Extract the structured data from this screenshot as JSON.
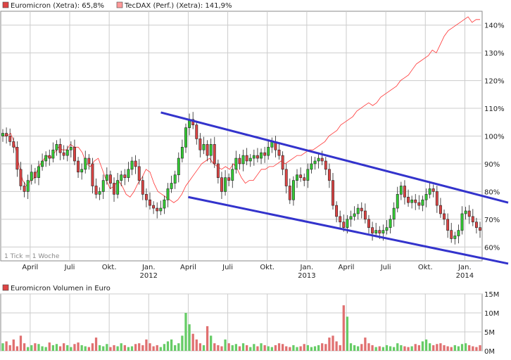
{
  "chart_data": {
    "type": "candlestick",
    "legend": {
      "series1_label": "Euromicron (Xetra): 65,8%",
      "series2_label": "TecDAX (Perf.) (Xetra): 141,9%",
      "volume_label": "Euromicron Volumen in Euro",
      "placement": "top-left"
    },
    "note": "1 Tick = 1 Woche",
    "colors": {
      "up": "#33cc33",
      "down": "#dd4444",
      "tecdax": "#ff3333",
      "channel": "#3333cc",
      "grid": "#cccccc",
      "volume": "#e07070"
    },
    "y_axis": {
      "min": 55,
      "max": 145,
      "ticks": [
        "60%",
        "70%",
        "80%",
        "90%",
        "100%",
        "110%",
        "120%",
        "130%",
        "140%"
      ],
      "tick_values": [
        60,
        70,
        80,
        90,
        100,
        110,
        120,
        130,
        140
      ]
    },
    "x_axis": {
      "labels": [
        "April",
        "Juli",
        "Okt.",
        "Jan.",
        "April",
        "Juli",
        "Okt.",
        "Jan.",
        "April",
        "Juli",
        "Okt.",
        "Jan."
      ],
      "label_weeks": [
        9,
        22,
        35,
        48,
        61,
        74,
        87,
        100,
        113,
        126,
        139,
        152
      ],
      "year_labels": [
        "2012",
        "2013",
        "2014"
      ],
      "year_weeks": [
        48,
        100,
        152
      ],
      "week_count": 158
    },
    "volume_axis": {
      "min": 0,
      "max": 15,
      "ticks": [
        "0M",
        "5M",
        "10M",
        "15M"
      ],
      "tick_values": [
        0,
        5,
        10,
        15
      ]
    },
    "euromicron_close": [
      101,
      100,
      98,
      96,
      88,
      82,
      80,
      84,
      87,
      85,
      89,
      91,
      93,
      92,
      95,
      97,
      94,
      93,
      95,
      96,
      91,
      87,
      88,
      92,
      90,
      82,
      79,
      80,
      84,
      86,
      83,
      79,
      84,
      86,
      85,
      88,
      91,
      89,
      84,
      79,
      77,
      75,
      74,
      73,
      74,
      77,
      81,
      83,
      86,
      92,
      96,
      103,
      106,
      104,
      99,
      95,
      97,
      93,
      97,
      90,
      85,
      80,
      85,
      84,
      88,
      92,
      90,
      93,
      91,
      92,
      93,
      92,
      94,
      93,
      96,
      98,
      95,
      93,
      88,
      82,
      77,
      84,
      86,
      85,
      84,
      88,
      90,
      91,
      92,
      91,
      88,
      84,
      75,
      71,
      69,
      67,
      70,
      71,
      72,
      74,
      73,
      70,
      67,
      65,
      66,
      65,
      66,
      67,
      70,
      74,
      79,
      82,
      78,
      76,
      77,
      76,
      75,
      77,
      79,
      81,
      80,
      75,
      72,
      70,
      66,
      63,
      64,
      66,
      72,
      73,
      71,
      69,
      67,
      66
    ],
    "euromicron_week_offset": 0,
    "tecdax": [
      100,
      100,
      101,
      97,
      90,
      84,
      82,
      84,
      85,
      89,
      91,
      93,
      92,
      94,
      96,
      95,
      95,
      97,
      96,
      96,
      94,
      90,
      89,
      91,
      92,
      88,
      84,
      81,
      82,
      84,
      82,
      79,
      78,
      80,
      83,
      85,
      88,
      87,
      83,
      80,
      79,
      78,
      77,
      76,
      77,
      79,
      82,
      84,
      86,
      88,
      90,
      91,
      92,
      90,
      89,
      88,
      89,
      88,
      90,
      88,
      85,
      83,
      84,
      84,
      86,
      88,
      88,
      89,
      89,
      90,
      91,
      90,
      91,
      92,
      93,
      93,
      94,
      95,
      95,
      96,
      97,
      98,
      100,
      101,
      102,
      104,
      105,
      106,
      107,
      109,
      110,
      111,
      112,
      111,
      112,
      114,
      115,
      116,
      117,
      118,
      120,
      121,
      122,
      124,
      126,
      127,
      128,
      129,
      131,
      130,
      133,
      136,
      138,
      139,
      140,
      141,
      142,
      143,
      141,
      142,
      142
    ],
    "channel_upper": {
      "start": [
        52,
        108.5
      ],
      "end": [
        157,
        76
      ]
    },
    "channel_lower": {
      "start": [
        61,
        78
      ],
      "end": [
        157,
        54
      ]
    },
    "volume_values": [
      2.0,
      2.5,
      1.5,
      3.0,
      1.2,
      4.0,
      2.0,
      1.0,
      1.5,
      2.0,
      1.8,
      1.2,
      1.0,
      2.2,
      1.5,
      1.8,
      1.2,
      2.0,
      1.5,
      1.0,
      1.8,
      2.2,
      1.5,
      1.2,
      1.0,
      2.0,
      3.5,
      1.5,
      1.2,
      1.8,
      1.0,
      1.5,
      1.2,
      2.0,
      1.5,
      1.0,
      1.2,
      1.8,
      2.0,
      1.5,
      3.0,
      2.0,
      1.2,
      1.5,
      1.0,
      1.8,
      2.5,
      3.0,
      1.5,
      2.0,
      4.0,
      10.0,
      7.0,
      4.5,
      3.0,
      2.0,
      1.5,
      6.5,
      4.0,
      2.0,
      1.5,
      1.2,
      3.0,
      2.0,
      1.5,
      1.8,
      1.2,
      2.0,
      1.5,
      1.0,
      1.8,
      1.2,
      2.0,
      1.5,
      1.2,
      1.0,
      1.5,
      2.0,
      1.8,
      1.2,
      1.0,
      1.5,
      1.0,
      1.2,
      1.8,
      1.5,
      1.0,
      1.2,
      1.5,
      2.0,
      1.8,
      3.5,
      4.0,
      2.5,
      1.5,
      12.0,
      9.0,
      2.0,
      1.5,
      1.2,
      1.8,
      3.5,
      2.0,
      1.5,
      1.0,
      1.2,
      1.0,
      1.5,
      1.2,
      1.0,
      2.0,
      1.5,
      1.2,
      1.0,
      1.2,
      1.8,
      1.5,
      2.5,
      3.0,
      2.0,
      1.5,
      1.8,
      2.0,
      1.5,
      1.2,
      1.0,
      1.5,
      1.2,
      1.8,
      2.0,
      1.5,
      1.2,
      1.0,
      1.5
    ]
  }
}
